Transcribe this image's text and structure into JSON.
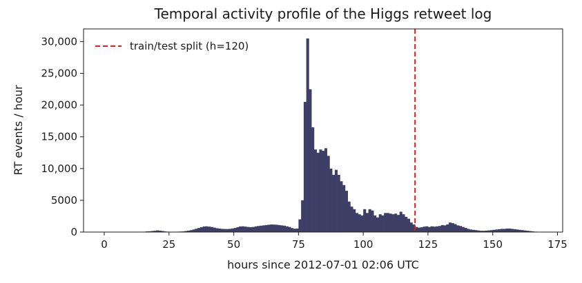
{
  "chart_data": {
    "type": "bar",
    "title": "Temporal activity profile of the Higgs retweet log",
    "xlabel": "hours since 2012-07-01 02:06 UTC",
    "ylabel": "RT events / hour",
    "xlim": [
      -8,
      177
    ],
    "ylim": [
      0,
      32000
    ],
    "xticks": [
      0,
      25,
      50,
      75,
      100,
      125,
      150,
      175
    ],
    "yticks": [
      0,
      5000,
      10000,
      15000,
      20000,
      25000,
      30000
    ],
    "ytick_labels": [
      "0",
      "5000",
      "10,000",
      "15,000",
      "20,000",
      "25,000",
      "30,000"
    ],
    "bar_color": "#3d3f66",
    "bin_width": 1,
    "legend": {
      "position": "top-left",
      "entries": [
        {
          "label": "train/test split (h=120)",
          "color": "#e41a1c",
          "style": "dashed"
        }
      ]
    },
    "split": {
      "x": 120,
      "color": "#e41a1c"
    },
    "series": [
      {
        "hours": [
          0,
          1,
          2,
          3,
          4,
          5,
          6,
          7,
          8,
          9,
          10,
          11,
          12,
          13,
          14,
          15,
          16,
          17,
          18,
          19,
          20,
          21,
          22,
          23,
          24,
          25,
          26,
          27,
          28,
          29,
          30,
          31,
          32,
          33,
          34,
          35,
          36,
          37,
          38,
          39,
          40,
          41,
          42,
          43,
          44,
          45,
          46,
          47,
          48,
          49,
          50,
          51,
          52,
          53,
          54,
          55,
          56,
          57,
          58,
          59,
          60,
          61,
          62,
          63,
          64,
          65,
          66,
          67,
          68,
          69,
          70,
          71,
          72,
          73,
          74,
          75,
          76,
          77,
          78,
          79,
          80,
          81,
          82,
          83,
          84,
          85,
          86,
          87,
          88,
          89,
          90,
          91,
          92,
          93,
          94,
          95,
          96,
          97,
          98,
          99,
          100,
          101,
          102,
          103,
          104,
          105,
          106,
          107,
          108,
          109,
          110,
          111,
          112,
          113,
          114,
          115,
          116,
          117,
          118,
          119,
          120,
          121,
          122,
          123,
          124,
          125,
          126,
          127,
          128,
          129,
          130,
          131,
          132,
          133,
          134,
          135,
          136,
          137,
          138,
          139,
          140,
          141,
          142,
          143,
          144,
          145,
          146,
          147,
          148,
          149,
          150,
          151,
          152,
          153,
          154,
          155,
          156,
          157,
          158,
          159,
          160,
          161,
          162,
          163,
          164,
          165,
          166,
          167
        ],
        "values": [
          0,
          0,
          0,
          0,
          0,
          0,
          0,
          0,
          0,
          0,
          0,
          0,
          0,
          0,
          40,
          60,
          100,
          120,
          160,
          200,
          260,
          220,
          160,
          100,
          60,
          40,
          30,
          40,
          60,
          80,
          100,
          160,
          220,
          300,
          400,
          520,
          640,
          760,
          880,
          900,
          850,
          800,
          700,
          600,
          550,
          500,
          480,
          470,
          500,
          560,
          640,
          760,
          880,
          900,
          850,
          800,
          760,
          800,
          880,
          950,
          1000,
          1050,
          1100,
          1150,
          1200,
          1180,
          1150,
          1100,
          1050,
          1000,
          900,
          800,
          620,
          520,
          560,
          2000,
          5000,
          20500,
          30500,
          22500,
          16500,
          13000,
          12500,
          13000,
          12800,
          13200,
          12000,
          10000,
          9000,
          9800,
          9000,
          8000,
          7400,
          6500,
          4800,
          4000,
          3600,
          3000,
          2800,
          2600,
          3600,
          3000,
          3600,
          3400,
          2600,
          2300,
          2800,
          2600,
          3000,
          3000,
          2900,
          2800,
          2900,
          2700,
          3200,
          2800,
          2400,
          2100,
          1500,
          1200,
          800,
          700,
          750,
          850,
          900,
          800,
          900,
          850,
          900,
          950,
          1100,
          1050,
          1200,
          1500,
          1400,
          1250,
          1050,
          950,
          800,
          650,
          500,
          400,
          350,
          300,
          250,
          200,
          200,
          220,
          260,
          300,
          350,
          400,
          450,
          500,
          500,
          550,
          550,
          500,
          450,
          400,
          350,
          300,
          250,
          200,
          150,
          100,
          60,
          0
        ]
      }
    ]
  }
}
